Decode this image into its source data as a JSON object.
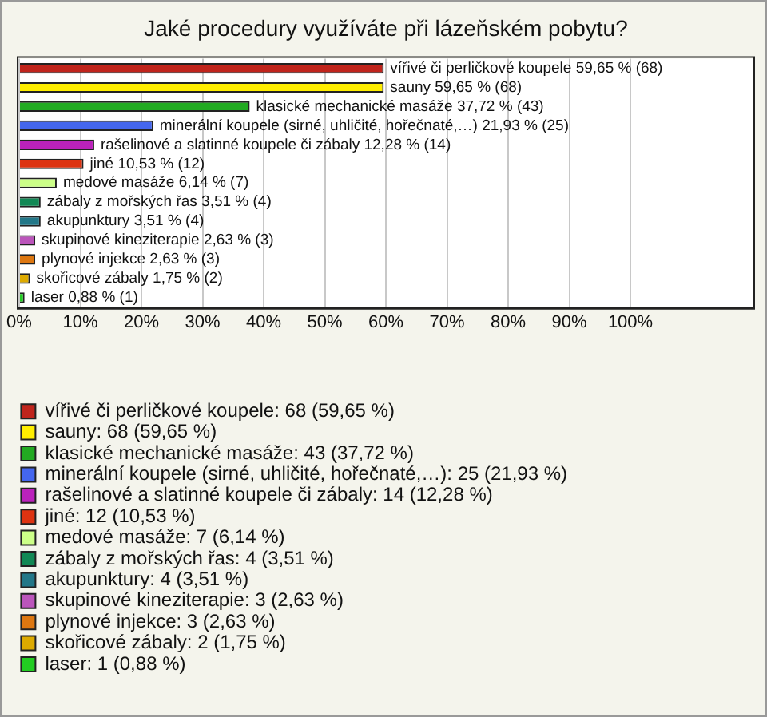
{
  "chart_data": {
    "type": "bar",
    "orientation": "horizontal",
    "title": "Jaké procedury využíváte při lázeňském pobytu?",
    "categories": [
      null,
      null,
      null,
      null,
      null,
      null,
      null,
      null,
      null,
      null,
      null,
      null,
      null
    ],
    "series": [
      {
        "name": "vířivé či perličkové koupele: 68 (59,65 %)",
        "color": "#c0241c",
        "values": [
          59.65,
          null,
          null,
          null,
          null,
          null,
          null,
          null,
          null,
          null,
          null,
          null,
          null
        ],
        "value_labels": [
          "vířivé či perličkové koupele 59,65 % (68)",
          null,
          null,
          null,
          null,
          null,
          null,
          null,
          null,
          null,
          null,
          null,
          null
        ]
      },
      {
        "name": "sauny: 68 (59,65 %)",
        "color": "#ffee00",
        "values": [
          null,
          59.65,
          null,
          null,
          null,
          null,
          null,
          null,
          null,
          null,
          null,
          null,
          null
        ],
        "value_labels": [
          null,
          "sauny 59,65 % (68)",
          null,
          null,
          null,
          null,
          null,
          null,
          null,
          null,
          null,
          null,
          null
        ]
      },
      {
        "name": "klasické mechanické masáže: 43 (37,72 %)",
        "color": "#22aa22",
        "values": [
          null,
          null,
          37.72,
          null,
          null,
          null,
          null,
          null,
          null,
          null,
          null,
          null,
          null
        ],
        "value_labels": [
          null,
          null,
          "klasické mechanické masáže 37,72 % (43)",
          null,
          null,
          null,
          null,
          null,
          null,
          null,
          null,
          null,
          null
        ]
      },
      {
        "name": "minerální koupele (sirné, uhličité, hořečnaté,…): 25 (21,93 %)",
        "color": "#4466ee",
        "values": [
          null,
          null,
          null,
          21.93,
          null,
          null,
          null,
          null,
          null,
          null,
          null,
          null,
          null
        ],
        "value_labels": [
          null,
          null,
          null,
          "minerální koupele (sirné, uhličité, hořečnaté,…) 21,93 % (25)",
          null,
          null,
          null,
          null,
          null,
          null,
          null,
          null,
          null
        ]
      },
      {
        "name": "rašelinové a slatinné koupele či zábaly: 14 (12,28 %)",
        "color": "#bb22bb",
        "values": [
          null,
          null,
          null,
          null,
          12.28,
          null,
          null,
          null,
          null,
          null,
          null,
          null,
          null
        ],
        "value_labels": [
          null,
          null,
          null,
          null,
          "rašelinové a slatinné koupele či zábaly 12,28 % (14)",
          null,
          null,
          null,
          null,
          null,
          null,
          null,
          null
        ]
      },
      {
        "name": "jiné: 12 (10,53 %)",
        "color": "#dd3311",
        "values": [
          null,
          null,
          null,
          null,
          null,
          10.53,
          null,
          null,
          null,
          null,
          null,
          null,
          null
        ],
        "value_labels": [
          null,
          null,
          null,
          null,
          null,
          "jiné 10,53 % (12)",
          null,
          null,
          null,
          null,
          null,
          null,
          null
        ]
      },
      {
        "name": "medové masáže: 7 (6,14 %)",
        "color": "#ccff88",
        "values": [
          null,
          null,
          null,
          null,
          null,
          null,
          6.14,
          null,
          null,
          null,
          null,
          null,
          null
        ],
        "value_labels": [
          null,
          null,
          null,
          null,
          null,
          null,
          "medové masáže 6,14 % (7)",
          null,
          null,
          null,
          null,
          null,
          null
        ]
      },
      {
        "name": "zábaly z mořských řas: 4 (3,51 %)",
        "color": "#118855",
        "values": [
          null,
          null,
          null,
          null,
          null,
          null,
          null,
          3.51,
          null,
          null,
          null,
          null,
          null
        ],
        "value_labels": [
          null,
          null,
          null,
          null,
          null,
          null,
          null,
          "zábaly z mořských řas 3,51 % (4)",
          null,
          null,
          null,
          null,
          null
        ]
      },
      {
        "name": "akupunktury: 4 (3,51 %)",
        "color": "#227788",
        "values": [
          null,
          null,
          null,
          null,
          null,
          null,
          null,
          null,
          3.51,
          null,
          null,
          null,
          null
        ],
        "value_labels": [
          null,
          null,
          null,
          null,
          null,
          null,
          null,
          null,
          "akupunktury 3,51 % (4)",
          null,
          null,
          null,
          null
        ]
      },
      {
        "name": "skupinové kineziterapie: 3 (2,63 %)",
        "color": "#bb55bb",
        "values": [
          null,
          null,
          null,
          null,
          null,
          null,
          null,
          null,
          null,
          2.63,
          null,
          null,
          null
        ],
        "value_labels": [
          null,
          null,
          null,
          null,
          null,
          null,
          null,
          null,
          null,
          "skupinové kineziterapie 2,63 % (3)",
          null,
          null,
          null
        ]
      },
      {
        "name": "plynové injekce: 3 (2,63 %)",
        "color": "#dd7711",
        "values": [
          null,
          null,
          null,
          null,
          null,
          null,
          null,
          null,
          null,
          null,
          2.63,
          null,
          null
        ],
        "value_labels": [
          null,
          null,
          null,
          null,
          null,
          null,
          null,
          null,
          null,
          null,
          "plynové injekce 2,63 % (3)",
          null,
          null
        ]
      },
      {
        "name": "skořicové zábaly: 2 (1,75 %)",
        "color": "#ddaa00",
        "values": [
          null,
          null,
          null,
          null,
          null,
          null,
          null,
          null,
          null,
          null,
          null,
          1.75,
          null
        ],
        "value_labels": [
          null,
          null,
          null,
          null,
          null,
          null,
          null,
          null,
          null,
          null,
          null,
          "skořicové zábaly 1,75 % (2)",
          null
        ]
      },
      {
        "name": "laser: 1 (0,88 %)",
        "color": "#22cc22",
        "values": [
          null,
          null,
          null,
          null,
          null,
          null,
          null,
          null,
          null,
          null,
          null,
          null,
          0.88
        ],
        "value_labels": [
          null,
          null,
          null,
          null,
          null,
          null,
          null,
          null,
          null,
          null,
          null,
          null,
          "laser 0,88 % (1)"
        ]
      }
    ],
    "xlim": [
      0,
      120
    ],
    "xticks": [
      {
        "value": 0,
        "label": "0%"
      },
      {
        "value": 10,
        "label": "10%"
      },
      {
        "value": 20,
        "label": "20%"
      },
      {
        "value": 30,
        "label": "30%"
      },
      {
        "value": 40,
        "label": "40%"
      },
      {
        "value": 50,
        "label": "50%"
      },
      {
        "value": 60,
        "label": "60%"
      },
      {
        "value": 70,
        "label": "70%"
      },
      {
        "value": 80,
        "label": "80%"
      },
      {
        "value": 90,
        "label": "90%"
      },
      {
        "value": 100,
        "label": "100%"
      }
    ],
    "grid": "x",
    "legend": "bottom",
    "tick_labels": "x"
  }
}
